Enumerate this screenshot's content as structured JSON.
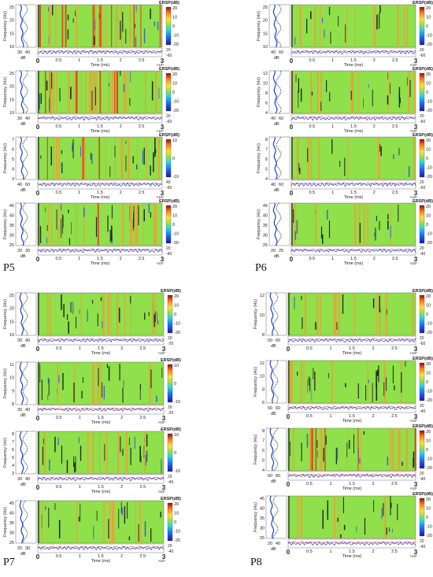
{
  "colors": {
    "background": "#8fe04a",
    "streak_dark": "#1a1a1a",
    "streak_orange": "#e8a23a",
    "streak_red": "#d9401e",
    "streak_blue": "#3a5bd0",
    "trace_blue": "#2b3bd6",
    "trace_red": "#d23a2a",
    "trace_dark": "#333333",
    "psd_blue": "#1d3fd0",
    "psd_dark": "#144a2a"
  },
  "chart_data": {
    "type": "heatmap",
    "colorbar_label": "ERSP(dB)",
    "xlabel": "Time (ms)",
    "ylabel": "Frequency (Hz)",
    "x_ticks": [
      "0",
      "0.5",
      "1",
      "1.5",
      "2",
      "2.5",
      "3"
    ],
    "x_exponent": "×10⁵",
    "psd_xlabel": "dB",
    "groups": [
      {
        "label": "P5",
        "panels": [
          {
            "y_ticks": [
              "10",
              "15",
              "20",
              "25"
            ],
            "cbar_ticks": [
              "20",
              "10",
              "0",
              "-10",
              "-20"
            ],
            "psd_ticks": [
              "30",
              "40"
            ],
            "trace_ticks": [
              "20",
              "-60"
            ],
            "streak_density": 0.9
          },
          {
            "y_ticks": [
              "10",
              "15",
              "20",
              "25"
            ],
            "cbar_ticks": [
              "20",
              "10",
              "0",
              "-10",
              "-20"
            ],
            "psd_ticks": [
              "30",
              "40"
            ],
            "trace_ticks": [
              "20",
              "-60"
            ],
            "streak_density": 0.9
          },
          {
            "y_ticks": [
              "3",
              "4",
              "5",
              "6",
              "7"
            ],
            "cbar_ticks": [
              "10",
              "0",
              "-10"
            ],
            "psd_ticks": [
              "40",
              "60"
            ],
            "trace_ticks": [
              "40",
              "-60"
            ],
            "streak_density": 0.8
          },
          {
            "y_ticks": [
              "25",
              "30",
              "35",
              "40",
              "45"
            ],
            "cbar_ticks": [
              "20",
              "10",
              "0",
              "-10",
              "-20"
            ],
            "psd_ticks": [
              "20",
              "30"
            ],
            "trace_ticks": [
              "20",
              "-40"
            ],
            "streak_density": 0.8
          }
        ]
      },
      {
        "label": "P6",
        "panels": [
          {
            "y_ticks": [
              "10",
              "15",
              "20",
              "25"
            ],
            "cbar_ticks": [
              "20",
              "10",
              "0",
              "-10",
              "-20"
            ],
            "psd_ticks": [
              "40",
              "60"
            ],
            "trace_ticks": [
              "20",
              "-60"
            ],
            "streak_density": 0.3
          },
          {
            "y_ticks": [
              "4",
              "6",
              "8",
              "10",
              "12"
            ],
            "cbar_ticks": [
              "20",
              "10",
              "0",
              "-10",
              "-20"
            ],
            "psd_ticks": [
              "40",
              "60"
            ],
            "trace_ticks": [
              "20",
              "-60"
            ],
            "streak_density": 0.5
          },
          {
            "y_ticks": [
              "4",
              "5",
              "6",
              "7",
              "8"
            ],
            "cbar_ticks": [
              "20",
              "10",
              "0",
              "-10",
              "-20"
            ],
            "psd_ticks": [
              "40",
              "60"
            ],
            "trace_ticks": [
              "20",
              "-60"
            ],
            "streak_density": 0.25
          },
          {
            "y_ticks": [
              "25",
              "30",
              "35",
              "40",
              "45"
            ],
            "cbar_ticks": [
              "20",
              "10",
              "0",
              "-10",
              "-20"
            ],
            "psd_ticks": [
              "20",
              "25"
            ],
            "trace_ticks": [
              "20",
              "-40"
            ],
            "streak_density": 0.35
          }
        ]
      },
      {
        "label": "P7",
        "panels": [
          {
            "y_ticks": [
              "10",
              "15",
              "20",
              "25"
            ],
            "cbar_ticks": [
              "20",
              "10",
              "0",
              "-10",
              "-20"
            ],
            "psd_ticks": [
              "30",
              "40"
            ],
            "trace_ticks": [
              "20",
              "-20"
            ],
            "streak_density": 0.6
          },
          {
            "y_ticks": [
              "8",
              "9",
              "10",
              "11"
            ],
            "cbar_ticks": [
              "10",
              "0",
              "-10"
            ],
            "psd_ticks": [
              "30",
              "40"
            ],
            "trace_ticks": [
              "20",
              "-20"
            ],
            "streak_density": 0.55
          },
          {
            "y_ticks": [
              "3",
              "4",
              "5",
              "6",
              "7",
              "8"
            ],
            "cbar_ticks": [
              "10",
              "0",
              "-10"
            ],
            "psd_ticks": [
              "30",
              "40"
            ],
            "trace_ticks": [
              "20",
              "-40"
            ],
            "streak_density": 0.6
          },
          {
            "y_ticks": [
              "25",
              "30",
              "35",
              "40",
              "45"
            ],
            "cbar_ticks": [
              "20",
              "10",
              "0",
              "-10",
              "-20"
            ],
            "psd_ticks": [
              "20",
              "30"
            ],
            "trace_ticks": [
              "20",
              "-40"
            ],
            "streak_density": 0.45
          }
        ]
      },
      {
        "label": "P8",
        "panels": [
          {
            "y_ticks": [
              "8",
              "10",
              "12"
            ],
            "cbar_ticks": [
              "20",
              "10",
              "0",
              "-10",
              "-20"
            ],
            "psd_ticks": [
              "50",
              "60"
            ],
            "trace_ticks": [
              "20",
              "-60"
            ],
            "streak_density": 0.3
          },
          {
            "y_ticks": [
              "6",
              "8",
              "10",
              "12"
            ],
            "cbar_ticks": [
              "20",
              "10",
              "0",
              "-10",
              "-20"
            ],
            "psd_ticks": [
              "50",
              "60"
            ],
            "trace_ticks": [
              "20",
              "-40"
            ],
            "streak_density": 0.55
          },
          {
            "y_ticks": [
              "4",
              "5",
              "6",
              "7",
              "8"
            ],
            "cbar_ticks": [
              "20",
              "10",
              "0",
              "-10",
              "-20"
            ],
            "psd_ticks": [
              "60",
              "80"
            ],
            "trace_ticks": [
              "20",
              "-40"
            ],
            "streak_density": 0.7
          },
          {
            "y_ticks": [
              "25",
              "30",
              "35",
              "40",
              "45"
            ],
            "cbar_ticks": [
              "20",
              "10",
              "0",
              "-10",
              "-20"
            ],
            "psd_ticks": [
              "20",
              "40"
            ],
            "trace_ticks": [
              "20",
              "-40"
            ],
            "streak_density": 0.3
          }
        ]
      }
    ]
  }
}
